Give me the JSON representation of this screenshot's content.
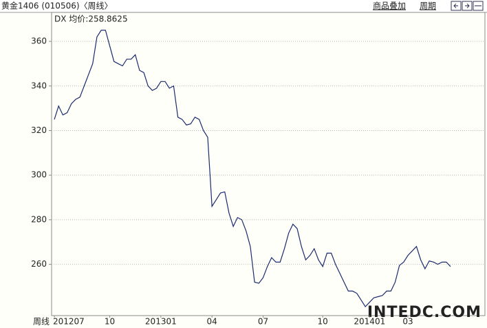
{
  "chart_data": {
    "type": "line",
    "title": "黄金1406 (010506)〈周线〉",
    "annotation": "DX 均价:258.8625",
    "x_label": "周线",
    "categories": [
      "201207",
      null,
      null,
      null,
      null,
      null,
      null,
      null,
      null,
      null,
      null,
      null,
      null,
      "10",
      null,
      null,
      null,
      null,
      null,
      null,
      null,
      null,
      null,
      null,
      null,
      "201301",
      null,
      null,
      null,
      null,
      null,
      null,
      null,
      null,
      null,
      null,
      null,
      "04",
      null,
      null,
      null,
      null,
      null,
      null,
      null,
      null,
      null,
      null,
      null,
      "07",
      null,
      null,
      null,
      null,
      null,
      null,
      null,
      null,
      null,
      null,
      null,
      null,
      null,
      "10",
      null,
      null,
      null,
      null,
      null,
      null,
      null,
      null,
      null,
      null,
      "201401",
      null,
      null,
      null,
      null,
      null,
      null,
      null,
      null,
      "03",
      null,
      null,
      null,
      null,
      null,
      null,
      null,
      null,
      null,
      null
    ],
    "series": [
      {
        "color": "#1a2a6c",
        "values": [
          325,
          331,
          327,
          328,
          332,
          334,
          335,
          340,
          345,
          350,
          362,
          365,
          365,
          358,
          351,
          350,
          349,
          352,
          352,
          354,
          347,
          346,
          340,
          338,
          339,
          342,
          342,
          339,
          340,
          326,
          325,
          322.5,
          323,
          326,
          325,
          320,
          317,
          286,
          289,
          292,
          292.5,
          283,
          277,
          281,
          280,
          275,
          268,
          252,
          251.5,
          254,
          259,
          263,
          261,
          261,
          267,
          274,
          278,
          276,
          268,
          262,
          264,
          267,
          262,
          259,
          265,
          265,
          260,
          256,
          252,
          248,
          248,
          247,
          244,
          241,
          243,
          245,
          245.5,
          246,
          248,
          248,
          252,
          259.5,
          261,
          264,
          266,
          268,
          262,
          258,
          261.5,
          261,
          260,
          261,
          261,
          259
        ]
      }
    ],
    "ylim": [
      237,
      373
    ],
    "yticks": [
      260,
      280,
      300,
      320,
      340,
      360
    ],
    "grid": true
  },
  "toolbar": {
    "buttons": [
      "商品叠加",
      "周期"
    ]
  },
  "watermark": "INTEDC.COM"
}
